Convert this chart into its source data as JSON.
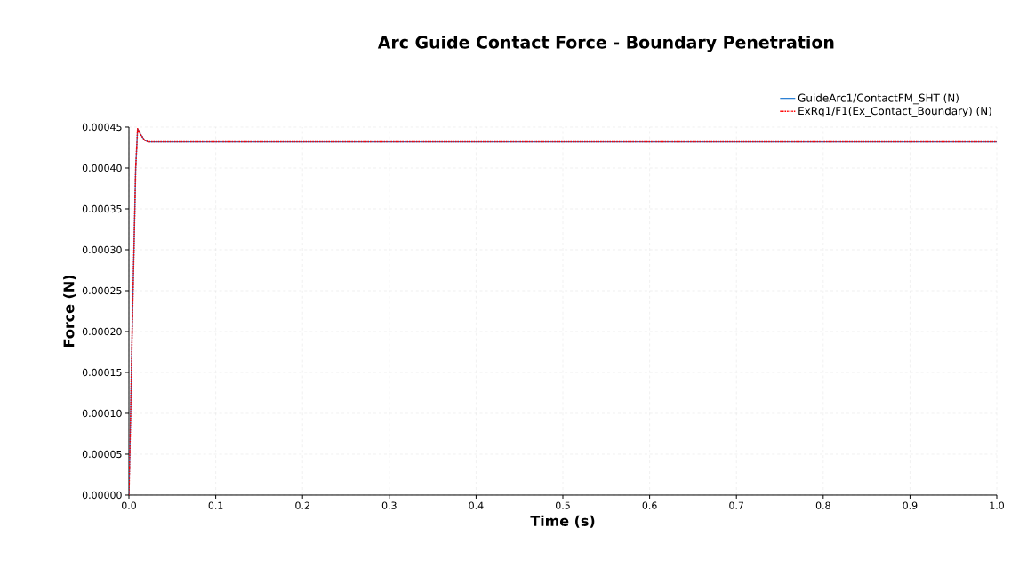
{
  "chart_data": {
    "type": "line",
    "title": "Arc Guide Contact Force - Boundary Penetration",
    "xlabel": "Time (s)",
    "ylabel": "Force (N)",
    "x": [
      0,
      0.002,
      0.0037,
      0.0058,
      0.0078,
      0.01,
      0.014,
      0.018,
      0.022,
      1.0
    ],
    "series": [
      {
        "name": "GuideArc1/ContactFM_SHT (N)",
        "color": "#1f78d1",
        "line_style": "solid",
        "values": [
          0,
          0.0001,
          0.0002,
          0.0003,
          0.0004,
          0.000448,
          0.00044,
          0.000434,
          0.000432,
          0.000432
        ]
      },
      {
        "name": "ExRq1/F1(Ex_Contact_Boundary) (N)",
        "color": "#ff0000",
        "line_style": "dotted",
        "values": [
          0,
          0.0001,
          0.0002,
          0.0003,
          0.0004,
          0.000448,
          0.00044,
          0.000434,
          0.000432,
          0.000432
        ]
      }
    ],
    "xlim": [
      0,
      1.0
    ],
    "ylim": [
      0,
      0.00045
    ],
    "xticks": [
      {
        "value": 0,
        "label": "0.0"
      },
      {
        "value": 0.1,
        "label": "0.1"
      },
      {
        "value": 0.2,
        "label": "0.2"
      },
      {
        "value": 0.3,
        "label": "0.3"
      },
      {
        "value": 0.4,
        "label": "0.4"
      },
      {
        "value": 0.5,
        "label": "0.5"
      },
      {
        "value": 0.6,
        "label": "0.6"
      },
      {
        "value": 0.7,
        "label": "0.7"
      },
      {
        "value": 0.8,
        "label": "0.8"
      },
      {
        "value": 0.9,
        "label": "0.9"
      },
      {
        "value": 1.0,
        "label": "1.0"
      }
    ],
    "yticks": [
      {
        "value": 0,
        "label": "0.00000"
      },
      {
        "value": 5e-05,
        "label": "0.00005"
      },
      {
        "value": 0.0001,
        "label": "0.00010"
      },
      {
        "value": 0.00015,
        "label": "0.00015"
      },
      {
        "value": 0.0002,
        "label": "0.00020"
      },
      {
        "value": 0.00025,
        "label": "0.00025"
      },
      {
        "value": 0.0003,
        "label": "0.00030"
      },
      {
        "value": 0.00035,
        "label": "0.00035"
      },
      {
        "value": 0.0004,
        "label": "0.00040"
      },
      {
        "value": 0.00045,
        "label": "0.00045"
      }
    ],
    "grid": true,
    "legend": "top right"
  }
}
